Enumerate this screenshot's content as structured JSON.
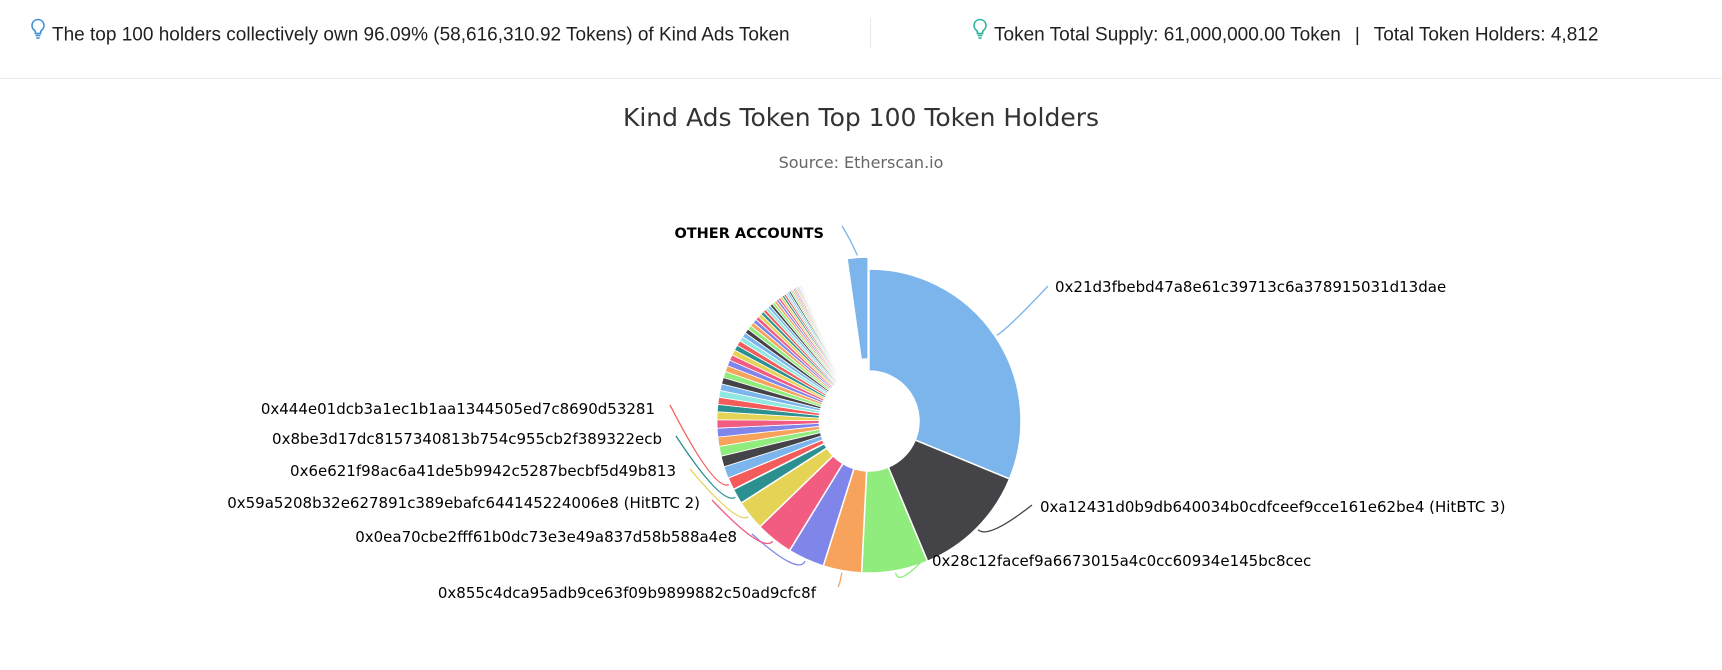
{
  "summary": {
    "top_holders_text": "The top 100 holders collectively own 96.09% (58,616,310.92 Tokens) of Kind Ads Token",
    "supply_text": "Token Total Supply: 61,000,000.00 Token",
    "separator": "|",
    "holders_text": "Total Token Holders: 4,812"
  },
  "icons": {
    "bulb": "lightbulb-icon"
  },
  "colors": {
    "bulb_left": "#3a8fd6",
    "bulb_right": "#29b39b",
    "palette": [
      "#7cb5ec",
      "#434348",
      "#90ed7d",
      "#f7a35c",
      "#8085e9",
      "#f15c80",
      "#e4d354",
      "#2b908f",
      "#f45b5b",
      "#91e8e1"
    ]
  },
  "chart_data": {
    "type": "pie",
    "title": "Kind Ads Token Top 100 Token Holders",
    "subtitle": "Source: Etherscan.io",
    "donut": true,
    "unit": "percent",
    "slices": [
      {
        "name": "0x21d3fbebd47a8e61c39713c6a378915031d13dae",
        "value": 30.5,
        "color": "#7cb5ec"
      },
      {
        "name": "0xa12431d0b9db640034b0cdfceef9cce161e62be4 (HitBTC 3)",
        "value": 12.2,
        "color": "#434348"
      },
      {
        "name": "0x28c12facef9a6673015a4c0cc60934e145bc8cec",
        "value": 6.9,
        "color": "#90ed7d"
      },
      {
        "name": "0x855c4dca95adb9ce63f09b9899882c50ad9cfc8f",
        "value": 4.0,
        "color": "#f7a35c"
      },
      {
        "name": "0x0ea70cbe2fff61b0dc73e3e49a837d58b588a4e8",
        "value": 3.8,
        "color": "#8085e9"
      },
      {
        "name": "0x59a5208b32e627891c389ebafc644145224006e8 (HitBTC 2)",
        "value": 3.9,
        "color": "#f15c80"
      },
      {
        "name": "0x6e621f98ac6a41de5b9942c5287becbf5d49b813",
        "value": 3.1,
        "color": "#e4d354"
      },
      {
        "name": "0x8be3d17dc8157340813b754c955cb2f389322ecb",
        "value": 1.6,
        "color": "#2b908f"
      },
      {
        "name": "0x444e01dcb3a1ec1b1aa1344505ed7c8690d53281",
        "value": 1.3,
        "color": "#f45b5b"
      },
      {
        "name": "OTHER ACCOUNTS",
        "value": 3.9,
        "color": "#7cb5ec"
      }
    ],
    "minor_slices": {
      "count": 90,
      "values": [
        1.2,
        1.1,
        1.0,
        0.95,
        0.9,
        0.85,
        0.8,
        0.75,
        0.72,
        0.7,
        0.68,
        0.66,
        0.64,
        0.62,
        0.6,
        0.58,
        0.56,
        0.54,
        0.52,
        0.5,
        0.48,
        0.46,
        0.44,
        0.42,
        0.4,
        0.38,
        0.36,
        0.34,
        0.32,
        0.3,
        0.29,
        0.28,
        0.27,
        0.26,
        0.25,
        0.24,
        0.23,
        0.22,
        0.21,
        0.2,
        0.19,
        0.18,
        0.17,
        0.16,
        0.15,
        0.14,
        0.13,
        0.12,
        0.11,
        0.1,
        0.1,
        0.09,
        0.09,
        0.08,
        0.08,
        0.07,
        0.07,
        0.06,
        0.06,
        0.05,
        0.05,
        0.05,
        0.04,
        0.04,
        0.04,
        0.03,
        0.03,
        0.03,
        0.03,
        0.02,
        0.02,
        0.02,
        0.02,
        0.02,
        0.02,
        0.01,
        0.01,
        0.01,
        0.01,
        0.01,
        0.01,
        0.01,
        0.01,
        0.01,
        0.01,
        0.01,
        0.01,
        0.01,
        0.01,
        0.01
      ]
    }
  }
}
